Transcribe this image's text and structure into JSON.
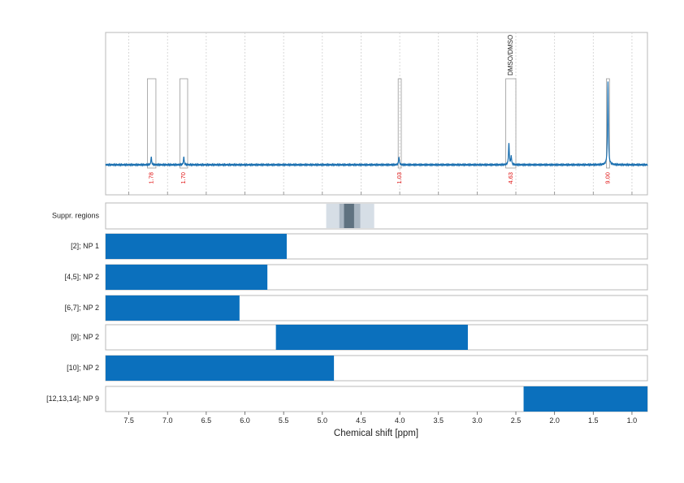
{
  "chart_data": {
    "type": "line",
    "xlabel": "Chemical shift [ppm]",
    "xlim": [
      7.8,
      0.8
    ],
    "x_ticks": [
      "7.5",
      "7.0",
      "6.5",
      "6.0",
      "5.5",
      "5.0",
      "4.5",
      "4.0",
      "3.5",
      "3.0",
      "2.5",
      "2.0",
      "1.5",
      "1.0"
    ],
    "colors": {
      "spectrum": "#1a6fb0",
      "bar": "#0b70bd",
      "integral": "#e01010",
      "box": "#9a9a9a"
    },
    "spectrum_peaks": [
      {
        "ppm": 7.21,
        "height": 0.09
      },
      {
        "ppm": 6.79,
        "height": 0.09
      },
      {
        "ppm": 4.01,
        "height": 0.09
      },
      {
        "ppm": 2.59,
        "height": 0.25
      },
      {
        "ppm": 2.56,
        "height": 0.1
      },
      {
        "ppm": 1.31,
        "height": 0.97
      }
    ],
    "integral_regions": [
      {
        "from": 7.26,
        "to": 7.15,
        "label": "1.78"
      },
      {
        "from": 6.84,
        "to": 6.74,
        "label": "1.70"
      },
      {
        "from": 4.02,
        "to": 3.98,
        "label": "1.03"
      },
      {
        "from": 2.63,
        "to": 2.5,
        "label": "4.63",
        "annotation": "DMSO/DMSO"
      },
      {
        "from": 1.33,
        "to": 1.29,
        "label": "9.00"
      }
    ],
    "suppression": {
      "label": "Suppr. regions",
      "bands": [
        {
          "from": 4.95,
          "to": 4.33,
          "level": 1
        },
        {
          "from": 4.78,
          "to": 4.51,
          "level": 2
        },
        {
          "from": 4.72,
          "to": 4.59,
          "level": 3
        }
      ]
    },
    "assignments": [
      {
        "label": "[2]; NP 1",
        "from": 7.8,
        "to": 5.46
      },
      {
        "label": "[4,5]; NP 2",
        "from": 7.8,
        "to": 5.71
      },
      {
        "label": "[6,7]; NP 2",
        "from": 7.8,
        "to": 6.07
      },
      {
        "label": "[9]; NP 2",
        "from": 5.6,
        "to": 3.12
      },
      {
        "label": "[10]; NP 2",
        "from": 7.8,
        "to": 4.85
      },
      {
        "label": "[12,13,14]; NP 9",
        "from": 2.4,
        "to": 0.8
      }
    ]
  }
}
